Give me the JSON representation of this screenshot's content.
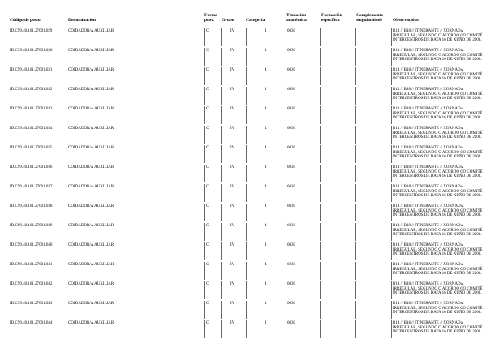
{
  "headers": {
    "codigo": "Código de posto",
    "denominacion": "Denominación",
    "forma_l1": "Forma",
    "forma_l2": "prov.",
    "grupo": "Grupo",
    "categoria": "Categoría",
    "titulacion_l1": "Titulación",
    "titulacion_l2": "académica",
    "formacion_l1": "Formación",
    "formacion_l2": "específica",
    "complemento_l1": "Complemento",
    "complemento_l2": "singularidade",
    "observaciones": "Observacións"
  },
  "rows": [
    {
      "codigo": "ID.C99.40.161.27001.029"
    },
    {
      "codigo": "ID.C99.40.161.27001.030"
    },
    {
      "codigo": "ID.C99.40.161.27001.031"
    },
    {
      "codigo": "ID.C99.40.161.27001.032"
    },
    {
      "codigo": "ID.C99.40.161.27001.033"
    },
    {
      "codigo": "ID.C99.40.161.27001.034"
    },
    {
      "codigo": "ID.C99.40.161.27001.035"
    },
    {
      "codigo": "ID.C99.40.161.27001.036"
    },
    {
      "codigo": "ID.C99.40.161.27001.037"
    },
    {
      "codigo": "ID.C99.40.161.27001.038"
    },
    {
      "codigo": "ID.C99.40.161.27001.039"
    },
    {
      "codigo": "ID.C99.40.161.27001.040"
    },
    {
      "codigo": "ID.C99.40.161.27001.041"
    },
    {
      "codigo": "ID.C99.40.161.27001.042"
    },
    {
      "codigo": "ID.C99.40.161.27001.043"
    },
    {
      "codigo": "ID.C99.40.161.27001.044"
    }
  ],
  "row_common": {
    "denominacion": "COIDADOR/A AUXILIAR",
    "forma": "C",
    "grupo": "IV",
    "categoria": "4",
    "titulacion": "6030",
    "obs_l1": "B14 // B18 // ITINERANTE // XORNADA",
    "obs_l2": "IRREGULAR, SEGUNDO O ACORDO CO COMITÉ",
    "obs_l3": "INTERCENTROS DE DATA 16 DE XUÑO DE 2008."
  }
}
